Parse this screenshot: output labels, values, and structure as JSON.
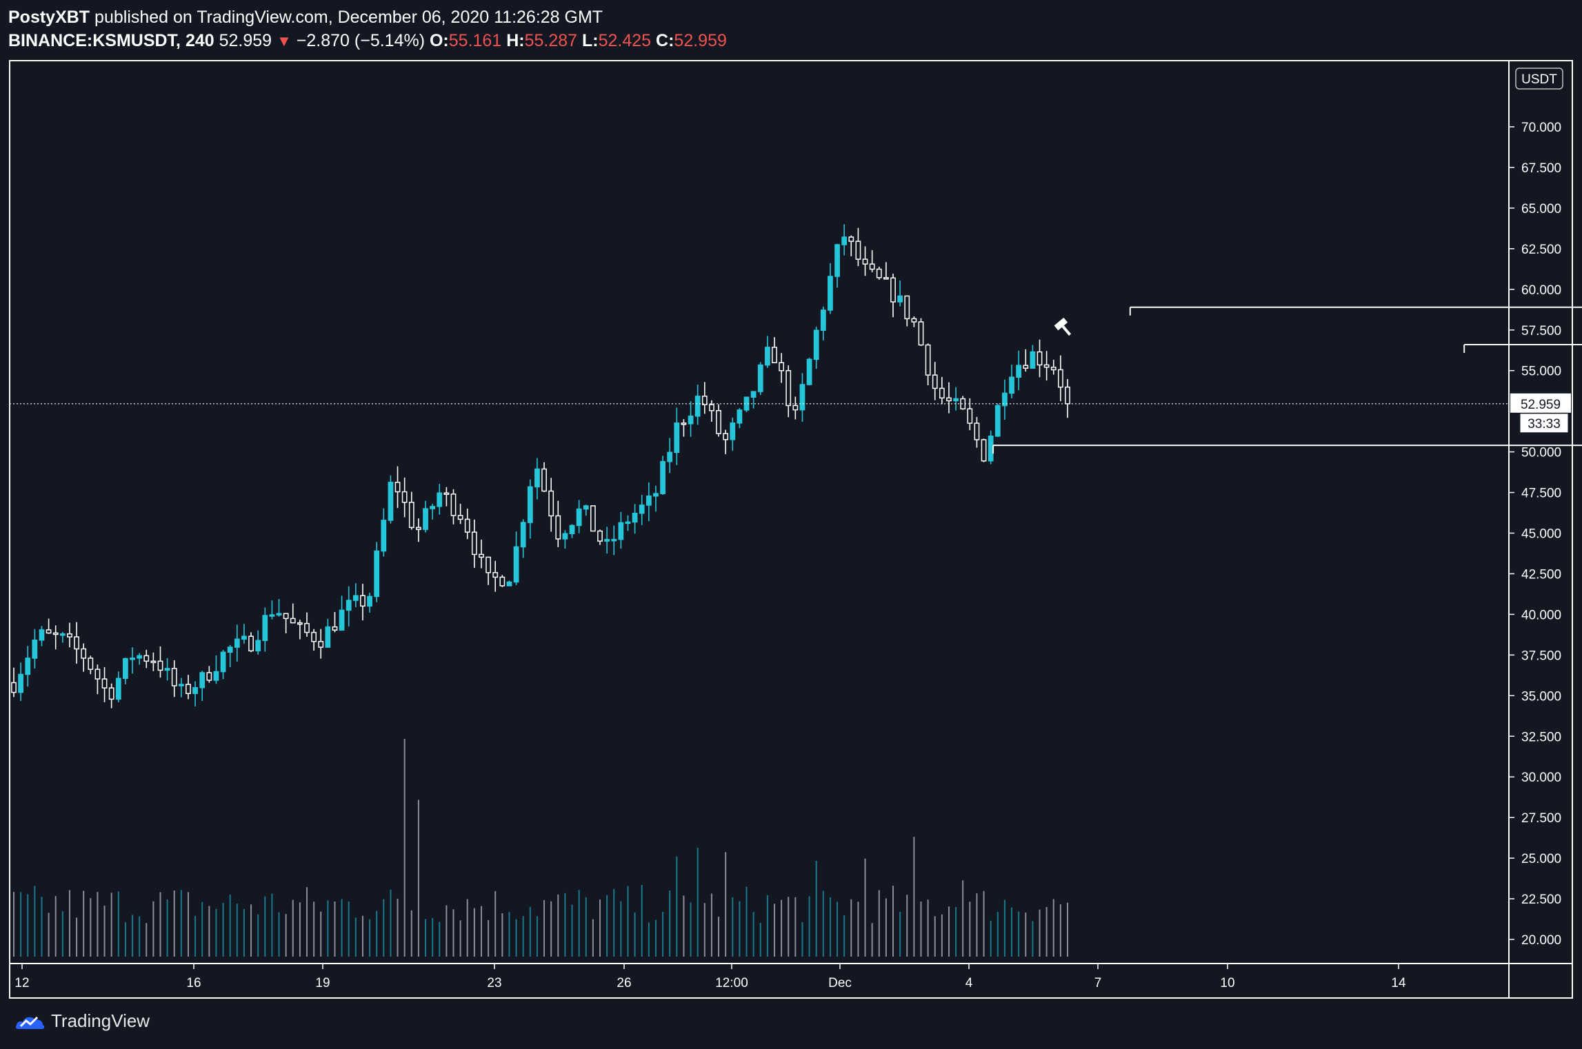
{
  "header": {
    "author": "PostyXBT",
    "published_text": "published on TradingView.com, December 06, 2020 11:26:28 GMT",
    "symbol": "BINANCE:KSMUSDT, 240",
    "last": "52.959",
    "change": "−2.870 (−5.14%)",
    "o_label": "O:",
    "o_value": "55.161",
    "h_label": "H:",
    "h_value": "55.287",
    "l_label": "L:",
    "l_value": "52.425",
    "c_label": "C:",
    "c_value": "52.959"
  },
  "footer": {
    "brand": "TradingView",
    "logo": "tradingview-logo-icon"
  },
  "colors": {
    "background": "#131722",
    "up": "#26c6da",
    "down": "#ffffff",
    "negative_text": "#ef5350",
    "volume_up": "#1a7a8c",
    "volume_down": "#8a8f9a"
  },
  "chart_data": {
    "type": "candlestick",
    "timeframe": "240",
    "currency_label": "USDT",
    "y_ticks": [
      "70.000",
      "67.500",
      "65.000",
      "62.500",
      "60.000",
      "57.500",
      "55.000",
      "50.000",
      "47.500",
      "45.000",
      "42.500",
      "40.000",
      "37.500",
      "35.000",
      "32.500",
      "30.000",
      "27.500",
      "25.000",
      "22.500",
      "20.000"
    ],
    "ylim": [
      19,
      72
    ],
    "x_ticks": [
      "12",
      "16",
      "19",
      "23",
      "26",
      "12:00",
      "Dec",
      "4",
      "7",
      "10",
      "14"
    ],
    "last_price_label": "52.959",
    "countdown_label": "33:33",
    "last_price": 52.959,
    "horizontal_levels": [
      {
        "from_day": 26.1,
        "to_day": 38.4,
        "price": 58.9
      },
      {
        "from_day": 33.9,
        "to_day": 38.4,
        "price": 56.6
      },
      {
        "from_day": 22.9,
        "to_day": 38.4,
        "price": 50.4
      }
    ],
    "annotation_icon": "hammer-icon",
    "anchors": {
      "start_price": 35.8,
      "points": [
        [
          0,
          35.8
        ],
        [
          2,
          38.7
        ],
        [
          4,
          38.5
        ],
        [
          6,
          37.4
        ],
        [
          8,
          35.0
        ],
        [
          10,
          37.5
        ],
        [
          12,
          37.3
        ],
        [
          14,
          35.1
        ],
        [
          16,
          36.0
        ],
        [
          18,
          37.8
        ],
        [
          20,
          38.3
        ],
        [
          22,
          40.5
        ],
        [
          24,
          39.0
        ],
        [
          26,
          38.5
        ],
        [
          28,
          40.3
        ],
        [
          30,
          41.0
        ],
        [
          32,
          48.5
        ],
        [
          34,
          45.0
        ],
        [
          36,
          47.5
        ],
        [
          38,
          46.0
        ],
        [
          40,
          42.0
        ],
        [
          42,
          42.5
        ],
        [
          44,
          49.5
        ],
        [
          46,
          45.0
        ],
        [
          48,
          46.5
        ],
        [
          50,
          44.0
        ],
        [
          52,
          46.0
        ],
        [
          54,
          47.0
        ],
        [
          56,
          51.5
        ],
        [
          58,
          53.5
        ],
        [
          60,
          50.5
        ],
        [
          62,
          53.0
        ],
        [
          64,
          56.5
        ],
        [
          66,
          52.0
        ],
        [
          68,
          58.0
        ],
        [
          70,
          63.5
        ],
        [
          72,
          61.0
        ],
        [
          74,
          60.0
        ],
        [
          76,
          58.0
        ],
        [
          78,
          53.5
        ],
        [
          80,
          52.5
        ],
        [
          82,
          49.8
        ],
        [
          84,
          55.0
        ],
        [
          86,
          56.0
        ],
        [
          88,
          55.2
        ],
        [
          89,
          52.96
        ]
      ]
    },
    "volume": {
      "unit": "relative",
      "spikes": [
        [
          33,
          1.0
        ],
        [
          34,
          0.72
        ],
        [
          56,
          0.46
        ],
        [
          58,
          0.5
        ],
        [
          60,
          0.48
        ],
        [
          68,
          0.44
        ],
        [
          72,
          0.45
        ],
        [
          76,
          0.55
        ],
        [
          80,
          0.35
        ]
      ]
    }
  }
}
